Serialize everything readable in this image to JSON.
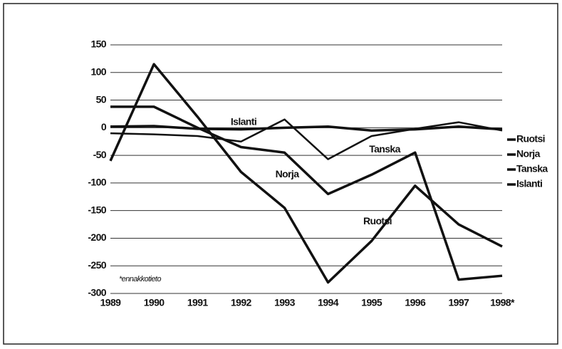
{
  "chart_data": {
    "type": "line",
    "categories": [
      "1989",
      "1990",
      "1991",
      "1992",
      "1993",
      "1994",
      "1995",
      "1996",
      "1997",
      "1998*"
    ],
    "series": [
      {
        "name": "Ruotsi",
        "color": "#111111",
        "values": [
          -60,
          115,
          20,
          -80,
          -145,
          -280,
          -205,
          -105,
          -175,
          -215
        ]
      },
      {
        "name": "Norja",
        "color": "#111111",
        "values": [
          38,
          38,
          0,
          -35,
          -45,
          -120,
          -85,
          -45,
          -275,
          -268
        ]
      },
      {
        "name": "Tanska",
        "color": "#111111",
        "values": [
          -10,
          -12,
          -15,
          -25,
          15,
          -57,
          -15,
          -2,
          10,
          -5
        ]
      },
      {
        "name": "Islanti",
        "color": "#111111",
        "values": [
          2,
          3,
          -2,
          -3,
          0,
          2,
          -5,
          -3,
          2,
          -3
        ]
      }
    ],
    "ylim": [
      -300,
      150
    ],
    "yticks": [
      150,
      100,
      50,
      0,
      -50,
      -100,
      -150,
      -200,
      -250,
      -300
    ],
    "grid": true,
    "legend": "right",
    "annotation": "*ennakkotieto"
  }
}
